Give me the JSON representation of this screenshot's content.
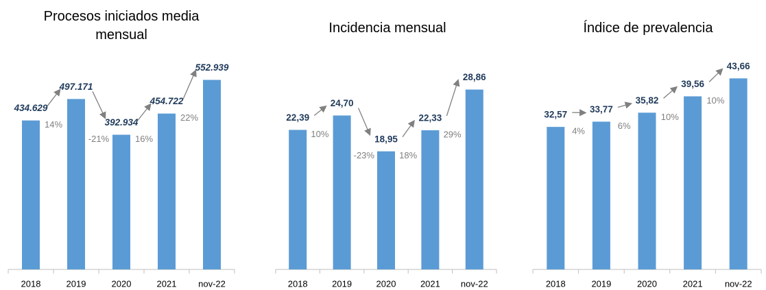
{
  "chart_data": [
    {
      "type": "bar",
      "title": "Procesos iniciados media mensual",
      "categories": [
        "2018",
        "2019",
        "2020",
        "2021",
        "nov-22"
      ],
      "values": [
        434629,
        497171,
        392934,
        454722,
        552939
      ],
      "value_labels": [
        "434.629",
        "497.171",
        "392.934",
        "454.722",
        "552.939"
      ],
      "annotations": [
        "14%",
        "-21%",
        "16%",
        "22%"
      ],
      "color": "#5b9bd5",
      "label_style": "italic",
      "ylim": [
        0,
        600000
      ]
    },
    {
      "type": "bar",
      "title": "Incidencia mensual",
      "categories": [
        "2018",
        "2019",
        "2020",
        "2021",
        "nov-22"
      ],
      "values": [
        22.39,
        24.7,
        18.95,
        22.33,
        28.86
      ],
      "value_labels": [
        "22,39",
        "24,70",
        "18,95",
        "22,33",
        "28,86"
      ],
      "annotations": [
        "10%",
        "-23%",
        "18%",
        "29%"
      ],
      "color": "#5b9bd5",
      "label_style": "normal",
      "ylim": [
        0,
        33
      ]
    },
    {
      "type": "bar",
      "title": "Índice de prevalencia",
      "categories": [
        "2018",
        "2019",
        "2020",
        "2021",
        "nov-22"
      ],
      "values": [
        32.57,
        33.77,
        35.82,
        39.56,
        43.66
      ],
      "value_labels": [
        "32,57",
        "33,77",
        "35,82",
        "39,56",
        "43,66"
      ],
      "annotations": [
        "4%",
        "6%",
        "10%",
        "10%"
      ],
      "color": "#5b9bd5",
      "label_style": "normal",
      "ylim": [
        0,
        47
      ]
    }
  ]
}
